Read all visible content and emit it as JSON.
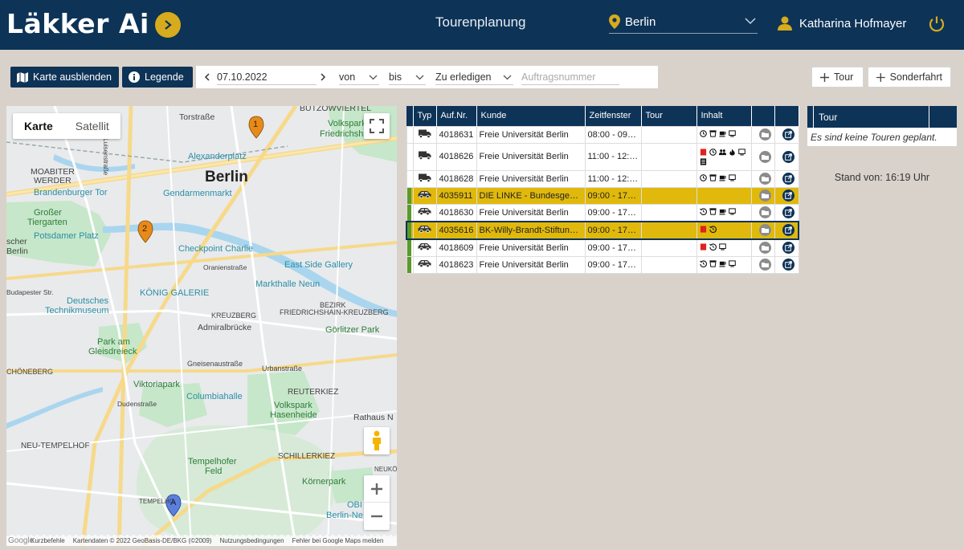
{
  "header": {
    "logo": "Läkker Ai",
    "title": "Tourenplanung",
    "city": "Berlin",
    "user": "Katharina Hofmayer",
    "accent": "#d6ab1d",
    "navy": "#0d3357"
  },
  "toolbar": {
    "hide_map_label": "Karte ausblenden",
    "legend_label": "Legende",
    "date": "07.10.2022",
    "from_label": "von",
    "to_label": "bis",
    "status_label": "Zu erledigen",
    "order_placeholder": "Auftragsnummer",
    "add_tour_label": "Tour",
    "add_special_label": "Sonderfahrt"
  },
  "map": {
    "tab_map": "Karte",
    "tab_satellite": "Satellit",
    "city_label": "Berlin",
    "labels": {
      "torstrasse": "Torstraße",
      "buetzowviertel": "BÜTZOWVIERTEL",
      "volkspark": "Volkspark",
      "friedrichshain": "Friedrichsh",
      "alexanderplatz": "Alexanderplatz",
      "moabiter": "MOABITER",
      "werder": "WERDER",
      "brandenburger": "Brandenburger Tor",
      "gendarmenmarkt": "Gendarmenmarkt",
      "grosser": "Großer",
      "tiergarten": "Tiergarten",
      "potsdamer": "Potsdamer Platz",
      "checkpoint": "Checkpoint Charlie",
      "scher": "scher",
      "berlin_w": "Berlin",
      "eastside": "East Side Gallery",
      "markthalle": "Markthalle Neun",
      "deutsches": "Deutsches",
      "technikmuseum": "Technikmuseum",
      "koenig": "KÖNIG GALERIE",
      "bezirk": "BEZIRK",
      "fkreuzberg": "FRIEDRICHSHAIN-KREUZBERG",
      "kreuzberg": "KREUZBERG",
      "admiral": "Admiralbrücke",
      "goerlitzer": "Görlitzer Park",
      "park_am": "Park am",
      "gleisdreieck": "Gleisdreieck",
      "schoeneberg": "CHÖNEBERG",
      "gneisenau": "Gneisenaustraße",
      "urbanstrasse": "Urbanstraße",
      "viktoriapark": "Viktoriapark",
      "columbiahalle": "Columbiahalle",
      "reuterkiez": "REUTERKIEZ",
      "volkspark_hasenheide": "Volkspark",
      "hasenheide": "Hasenheide",
      "rathaus": "Rathaus N",
      "dudenstrasse": "Dudenstraße",
      "neu_tempelhof": "NEU-TEMPELHOF",
      "tempelhofer": "Tempelhofer",
      "feld": "Feld",
      "schillerkiez": "SCHILLERKIEZ",
      "neukoe": "NEUKÖ",
      "koernerpark": "Körnerpark",
      "tempelhof": "TEMPELHO",
      "obi": "OBI",
      "berlin_ne": "Berlin-Ne",
      "oranien": "Oranienstraße",
      "luisenstrasse": "Luisenstraße",
      "budapester": "Budapester Str."
    },
    "markers": [
      "1",
      "2",
      "A"
    ],
    "footer": {
      "shortcuts": "Kurzbefehle",
      "mapdata": "Kartendaten © 2022 GeoBasis-DE/BKG (©2009)",
      "terms": "Nutzungsbedingungen",
      "report": "Fehler bei Google Maps melden",
      "google": "Google"
    }
  },
  "orders": {
    "columns": [
      "Typ",
      "Auf.Nr.",
      "Kunde",
      "Zeitfenster",
      "Tour",
      "Inhalt"
    ],
    "rows": [
      {
        "type": "truck",
        "nr": "4018631",
        "kunde": "Freie Universität Berlin",
        "zeit": "08:00 - 09:00",
        "tour": "",
        "bar": "",
        "highlight": false,
        "selected": false,
        "icons": [
          "clock",
          "cup",
          "coffee",
          "screen"
        ]
      },
      {
        "type": "truck",
        "nr": "4018626",
        "kunde": "Freie Universität Berlin",
        "zeit": "11:00 - 12:00",
        "tour": "",
        "bar": "",
        "highlight": false,
        "selected": false,
        "tall": true,
        "icons": [
          "flag",
          "clock",
          "people",
          "flame",
          "screen",
          "list"
        ]
      },
      {
        "type": "truck",
        "nr": "4018628",
        "kunde": "Freie Universität Berlin",
        "zeit": "11:00 - 12:00",
        "tour": "",
        "bar": "",
        "highlight": false,
        "selected": false,
        "icons": [
          "clock",
          "cup",
          "coffee",
          "screen"
        ]
      },
      {
        "type": "car",
        "nr": "4035911",
        "kunde": "DIE LINKE - Bundesgeschäftsstelle",
        "zeit": "09:00 - 17:00",
        "tour": "",
        "bar": "#5a9a2a",
        "highlight": true,
        "selected": false,
        "icons": []
      },
      {
        "type": "car",
        "nr": "4018630",
        "kunde": "Freie Universität Berlin",
        "zeit": "09:00 - 17:00",
        "tour": "",
        "bar": "#5a9a2a",
        "highlight": false,
        "selected": false,
        "icons": [
          "history",
          "cup",
          "coffee",
          "screen"
        ]
      },
      {
        "type": "car",
        "nr": "4035616",
        "kunde": "BK-Willy-Brandt-Stiftung | Berlin",
        "zeit": "09:00 - 17:00",
        "tour": "",
        "bar": "#5a9a2a",
        "highlight": true,
        "selected": true,
        "icons": [
          "flag",
          "history"
        ]
      },
      {
        "type": "car",
        "nr": "4018609",
        "kunde": "Freie Universität Berlin",
        "zeit": "09:00 - 17:00",
        "tour": "",
        "bar": "#5a9a2a",
        "highlight": false,
        "selected": false,
        "icons": [
          "flag",
          "history",
          "screen"
        ]
      },
      {
        "type": "car",
        "nr": "4018623",
        "kunde": "Freie Universität Berlin",
        "zeit": "09:00 - 17:00",
        "tour": "",
        "bar": "#5a9a2a",
        "highlight": false,
        "selected": false,
        "icons": [
          "history",
          "cup",
          "coffee",
          "screen"
        ]
      }
    ]
  },
  "tours": {
    "header": "Tour",
    "empty": "Es sind keine Touren geplant.",
    "stand": "Stand von: 16:19 Uhr"
  }
}
